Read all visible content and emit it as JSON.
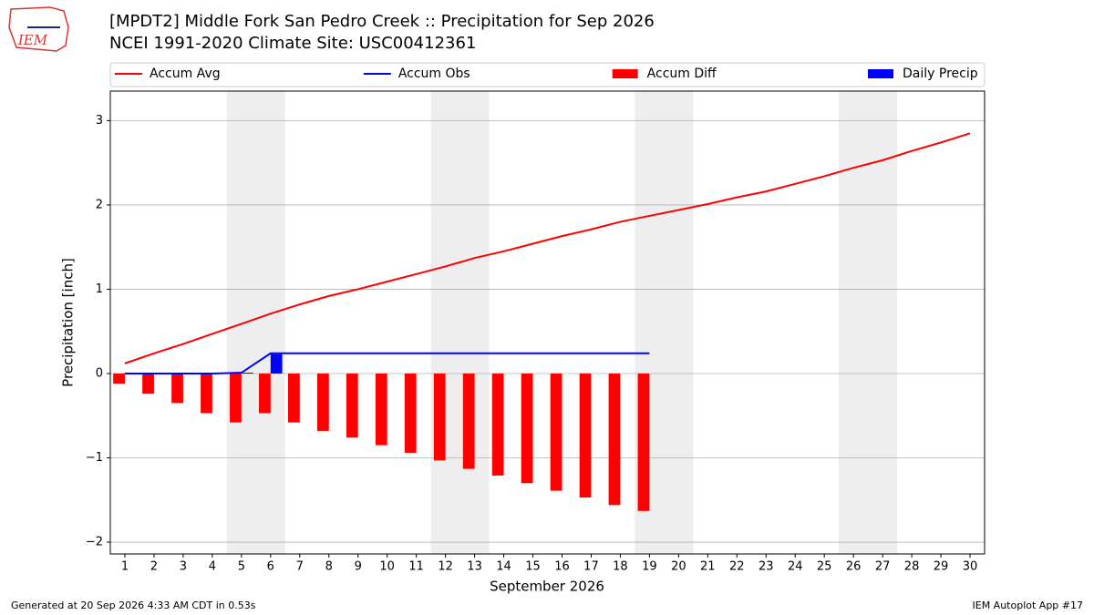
{
  "chart_data": {
    "type": "line",
    "title": "[MPDT2] Middle Fork San Pedro Creek :: Precipitation for Sep 2026",
    "subtitle": "NCEI 1991-2020 Climate Site: USC00412361",
    "xlabel": "September 2026",
    "ylabel": "Precipitation [inch]",
    "x": [
      1,
      2,
      3,
      4,
      5,
      6,
      7,
      8,
      9,
      10,
      11,
      12,
      13,
      14,
      15,
      16,
      17,
      18,
      19,
      20,
      21,
      22,
      23,
      24,
      25,
      26,
      27,
      28,
      29,
      30
    ],
    "series": [
      {
        "name": "Accum Avg",
        "type": "line",
        "color": "#ff0000",
        "values": [
          0.12,
          0.24,
          0.35,
          0.47,
          0.59,
          0.71,
          0.82,
          0.92,
          1.0,
          1.09,
          1.18,
          1.27,
          1.37,
          1.45,
          1.54,
          1.63,
          1.71,
          1.8,
          1.87,
          1.94,
          2.01,
          2.09,
          2.16,
          2.25,
          2.34,
          2.44,
          2.53,
          2.64,
          2.74,
          2.85
        ]
      },
      {
        "name": "Accum Obs",
        "type": "line",
        "color": "#0000ff",
        "values": [
          0,
          0,
          0,
          0,
          0.01,
          0.24,
          0.24,
          0.24,
          0.24,
          0.24,
          0.24,
          0.24,
          0.24,
          0.24,
          0.24,
          0.24,
          0.24,
          0.24,
          0.24,
          null,
          null,
          null,
          null,
          null,
          null,
          null,
          null,
          null,
          null,
          null
        ]
      },
      {
        "name": "Accum Diff",
        "type": "bar",
        "color": "#ff0000",
        "values": [
          -0.12,
          -0.24,
          -0.35,
          -0.47,
          -0.58,
          -0.47,
          -0.58,
          -0.68,
          -0.76,
          -0.85,
          -0.94,
          -1.03,
          -1.13,
          -1.21,
          -1.3,
          -1.39,
          -1.47,
          -1.56,
          -1.63,
          null,
          null,
          null,
          null,
          null,
          null,
          null,
          null,
          null,
          null,
          null
        ]
      },
      {
        "name": "Daily Precip",
        "type": "bar",
        "color": "#0000ff",
        "values": [
          0,
          0,
          0,
          0,
          0.01,
          0.23,
          0,
          0,
          0,
          0,
          0,
          0,
          0,
          0,
          0,
          0,
          0,
          0,
          0,
          null,
          null,
          null,
          null,
          null,
          null,
          null,
          null,
          null,
          null,
          null
        ]
      }
    ],
    "shaded_spans": [
      [
        4.5,
        6.5
      ],
      [
        11.5,
        13.5
      ],
      [
        18.5,
        20.5
      ],
      [
        25.5,
        27.5
      ]
    ],
    "shade_color": "#eeeeee",
    "xlim": [
      0.5,
      30.5
    ],
    "ylim": [
      -2.14,
      3.35
    ],
    "xticks": [
      1,
      2,
      3,
      4,
      5,
      6,
      7,
      8,
      9,
      10,
      11,
      12,
      13,
      14,
      15,
      16,
      17,
      18,
      19,
      20,
      21,
      22,
      23,
      24,
      25,
      26,
      27,
      28,
      29,
      30
    ],
    "yticks": [
      {
        "value": -2,
        "label": "−2"
      },
      {
        "value": -1,
        "label": "−1"
      },
      0,
      1,
      2,
      3
    ],
    "grid": true,
    "legend": "top",
    "footer_left": "Generated at 20 Sep 2026 4:33 AM CDT in 0.53s",
    "footer_right": "IEM Autoplot App #17",
    "logo_text": "IEM"
  }
}
